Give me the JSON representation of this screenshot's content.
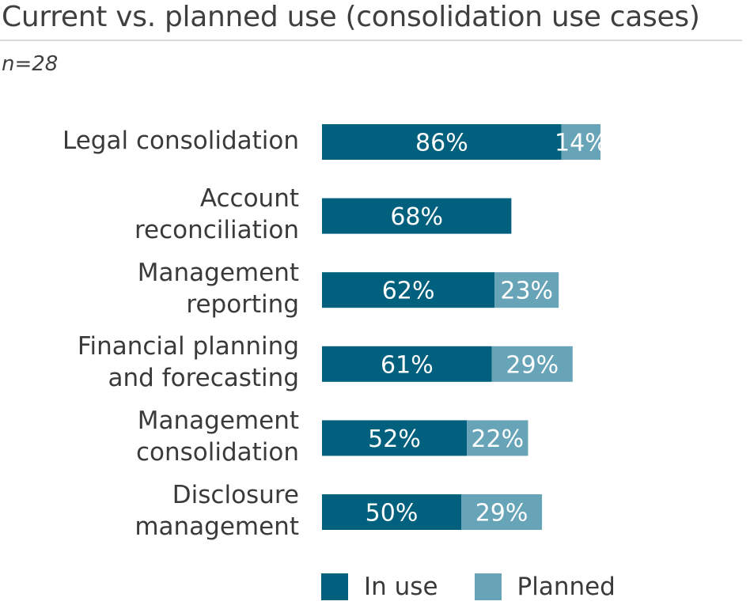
{
  "title": "Current vs. planned use (consolidation use cases)",
  "subtitle": "n=28",
  "colors": {
    "in_use": "#00607d",
    "planned": "#68a4b7",
    "label_text": "#ffffff"
  },
  "chart_data": {
    "type": "bar",
    "orientation": "horizontal",
    "stacked": true,
    "categories": [
      [
        "Legal consolidation"
      ],
      [
        "Account",
        "reconciliation"
      ],
      [
        "Management",
        "reporting"
      ],
      [
        "Financial planning",
        "and forecasting"
      ],
      [
        "Management",
        "consolidation"
      ],
      [
        "Disclosure",
        "management"
      ]
    ],
    "series": [
      {
        "name": "In use",
        "values": [
          86,
          68,
          62,
          61,
          52,
          50
        ],
        "labels": [
          "86%",
          "68%",
          "62%",
          "61%",
          "52%",
          "50%"
        ]
      },
      {
        "name": "Planned",
        "values": [
          14,
          0,
          23,
          29,
          22,
          29
        ],
        "labels": [
          "14%",
          "",
          "23%",
          "29%",
          "22%",
          "29%"
        ]
      }
    ],
    "xlim": [
      0,
      100
    ],
    "grid": false,
    "legend_position": "bottom"
  },
  "legend": {
    "in_use_label": "In use",
    "planned_label": "Planned"
  }
}
